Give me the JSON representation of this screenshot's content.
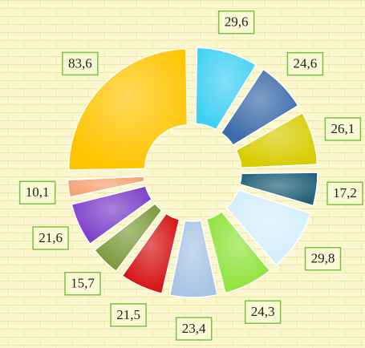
{
  "chart_data": {
    "type": "donut",
    "values": [
      29.6,
      24.6,
      26.1,
      17.2,
      29.8,
      24.3,
      23.4,
      21.5,
      15.7,
      21.6,
      10.1,
      83.6
    ],
    "value_labels": [
      "29,6",
      "24,6",
      "26,1",
      "17,2",
      "29,8",
      "24,3",
      "23,4",
      "21,5",
      "15,7",
      "21,6",
      "10,1",
      "83,6"
    ],
    "colors": [
      "#3fd0f2",
      "#3a6aa8",
      "#d8cc00",
      "#1f5f78",
      "#d4eefc",
      "#8fe23a",
      "#a8c4e4",
      "#d41010",
      "#7a9a3a",
      "#7a3cc8",
      "#f4a070",
      "#ffc400"
    ]
  }
}
